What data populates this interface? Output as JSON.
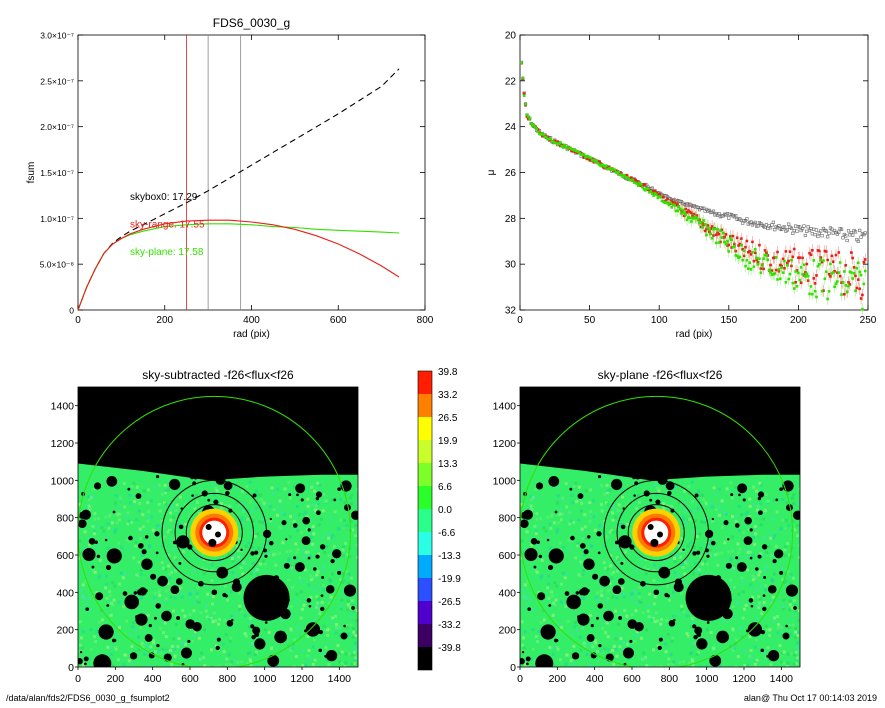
{
  "footer": {
    "path": "/data/alan/fds2/FDS6_0030_g_fsumplot2",
    "stamp": "alan@  Thu Oct 17 00:14:03 2019"
  },
  "colors": {
    "black": "#000000",
    "red": "#e8201a",
    "green": "#33e000",
    "gray": "#888888",
    "sky_map_mid": "#33ee66"
  },
  "chart_data": [
    {
      "id": "fsum",
      "type": "line",
      "title": "FDS6_0030_g",
      "xlabel": "rad (pix)",
      "ylabel": "fsum",
      "xlim": [
        0,
        800
      ],
      "ylim": [
        0,
        3e-07
      ],
      "xticks": [
        0,
        200,
        400,
        600,
        800
      ],
      "xtick_labels": [
        "0",
        "200",
        "400",
        "600",
        "800"
      ],
      "yticks": [
        0,
        5e-08,
        1e-07,
        1.5e-07,
        2e-07,
        2.5e-07,
        3e-07
      ],
      "ytick_labels": [
        "0",
        "5.0×10⁻⁸",
        "1.0×10⁻⁷",
        "1.5×10⁻⁷",
        "2.0×10⁻⁷",
        "2.5×10⁻⁷",
        "3.0×10⁻⁷"
      ],
      "vlines": [
        {
          "x": 250,
          "color": "red"
        },
        {
          "x": 300,
          "color": "gray"
        },
        {
          "x": 375,
          "color": "gray"
        }
      ],
      "annotations": [
        {
          "text": "skybox0: 17.29",
          "x": 120,
          "y": 1.2e-07,
          "color": "black"
        },
        {
          "text": "sky-range: 17.55",
          "x": 120,
          "y": 9e-08,
          "color": "red"
        },
        {
          "text": "sky-plane: 17.58",
          "x": 120,
          "y": 6e-08,
          "color": "green"
        }
      ],
      "series": [
        {
          "color": "black",
          "dash": true,
          "x": [
            0,
            20,
            40,
            60,
            80,
            100,
            120,
            150,
            200,
            250,
            300,
            350,
            400,
            450,
            500,
            550,
            600,
            650,
            700,
            740
          ],
          "y": [
            0,
            2.5e-08,
            4.5e-08,
            6.2e-08,
            7.3e-08,
            8e-08,
            8.6e-08,
            9.3e-08,
            1.05e-07,
            1.17e-07,
            1.3e-07,
            1.44e-07,
            1.58e-07,
            1.72e-07,
            1.86e-07,
            2e-07,
            2.14e-07,
            2.29e-07,
            2.44e-07,
            2.63e-07
          ]
        },
        {
          "color": "green",
          "dash": false,
          "x": [
            0,
            20,
            40,
            60,
            80,
            100,
            120,
            150,
            200,
            250,
            300,
            350,
            400,
            450,
            500,
            550,
            600,
            650,
            700,
            740
          ],
          "y": [
            0,
            2.5e-08,
            4.5e-08,
            6.2e-08,
            7.2e-08,
            7.8e-08,
            8.2e-08,
            8.6e-08,
            9.1e-08,
            9.3e-08,
            9.4e-08,
            9.4e-08,
            9.3e-08,
            9.1e-08,
            9e-08,
            8.8e-08,
            8.7e-08,
            8.6e-08,
            8.5e-08,
            8.4e-08
          ]
        },
        {
          "color": "red",
          "dash": false,
          "x": [
            0,
            20,
            40,
            60,
            80,
            100,
            120,
            150,
            200,
            250,
            300,
            350,
            400,
            450,
            500,
            550,
            600,
            650,
            700,
            740
          ],
          "y": [
            0,
            2.5e-08,
            4.5e-08,
            6.2e-08,
            7.2e-08,
            7.8e-08,
            8.3e-08,
            8.8e-08,
            9.4e-08,
            9.7e-08,
            9.8e-08,
            9.8e-08,
            9.6e-08,
            9.3e-08,
            8.8e-08,
            8.1e-08,
            7.2e-08,
            6.1e-08,
            4.8e-08,
            3.6e-08
          ]
        }
      ]
    },
    {
      "id": "mu",
      "type": "scatter",
      "title": "",
      "xlabel": "rad (pix)",
      "ylabel": "μ",
      "xlim": [
        0,
        250
      ],
      "ylim": [
        32,
        20
      ],
      "xticks": [
        0,
        50,
        100,
        150,
        200,
        250
      ],
      "xtick_labels": [
        "0",
        "50",
        "100",
        "150",
        "200",
        "250"
      ],
      "yticks": [
        20,
        22,
        24,
        26,
        28,
        30,
        32
      ],
      "ytick_labels": [
        "20",
        "22",
        "24",
        "26",
        "28",
        "30",
        "32"
      ],
      "series": [
        {
          "color": "gray",
          "x": [
            1,
            3,
            5,
            10,
            15,
            20,
            30,
            40,
            50,
            60,
            70,
            80,
            90,
            100,
            110,
            120,
            130,
            140,
            150,
            160,
            170,
            180,
            190,
            200,
            210,
            220,
            230,
            240,
            248
          ],
          "y": [
            21.2,
            22.6,
            23.5,
            24.0,
            24.3,
            24.5,
            24.8,
            25.1,
            25.4,
            25.7,
            26.0,
            26.3,
            26.6,
            26.9,
            27.2,
            27.4,
            27.6,
            27.8,
            27.9,
            28.1,
            28.2,
            28.3,
            28.4,
            28.5,
            28.6,
            28.6,
            28.7,
            28.8,
            28.8
          ]
        },
        {
          "color": "red",
          "x": [
            1,
            3,
            5,
            10,
            15,
            20,
            30,
            40,
            50,
            60,
            70,
            80,
            90,
            100,
            110,
            120,
            130,
            140,
            150,
            160,
            170,
            180,
            190,
            200,
            210,
            220,
            230,
            240,
            248
          ],
          "y": [
            21.2,
            22.6,
            23.5,
            24.0,
            24.3,
            24.5,
            24.8,
            25.1,
            25.4,
            25.7,
            26.0,
            26.3,
            26.6,
            27.0,
            27.4,
            27.8,
            28.2,
            28.6,
            29.0,
            29.4,
            29.6,
            29.8,
            30.0,
            30.1,
            30.2,
            30.3,
            30.4,
            30.5,
            30.5
          ]
        },
        {
          "color": "green",
          "x": [
            1,
            3,
            5,
            10,
            15,
            20,
            30,
            40,
            50,
            60,
            70,
            80,
            90,
            100,
            110,
            120,
            130,
            140,
            150,
            160,
            170,
            180,
            190,
            200,
            210,
            220,
            230,
            240,
            248
          ],
          "y": [
            21.2,
            22.6,
            23.5,
            24.0,
            24.3,
            24.5,
            24.8,
            25.1,
            25.4,
            25.7,
            26.0,
            26.3,
            26.7,
            27.1,
            27.5,
            27.9,
            28.3,
            28.7,
            29.1,
            29.6,
            29.9,
            30.1,
            30.3,
            30.5,
            30.6,
            30.7,
            30.8,
            30.9,
            31.0
          ]
        }
      ]
    },
    {
      "id": "map-sky-subtracted",
      "type": "heatmap",
      "title": "sky-subtracted -f26<flux<f26",
      "xlim": [
        0,
        1500
      ],
      "ylim": [
        0,
        1500
      ],
      "xticks": [
        0,
        200,
        400,
        600,
        800,
        1000,
        1200,
        1400
      ],
      "xtick_labels": [
        "0",
        "200",
        "400",
        "600",
        "800",
        "1000",
        "1200",
        "1400"
      ],
      "yticks": [
        0,
        200,
        400,
        600,
        800,
        1000,
        1200,
        1400
      ],
      "ytick_labels": [
        "0",
        "200",
        "400",
        "600",
        "800",
        "1000",
        "1200",
        "1400"
      ],
      "galaxy_center": [
        730,
        720
      ],
      "circles": [
        {
          "r": 280,
          "color": "black"
        },
        {
          "r": 210,
          "color": "black"
        },
        {
          "r": 150,
          "color": "black"
        },
        {
          "r": 730,
          "color": "green"
        }
      ]
    },
    {
      "id": "colorbar",
      "type": "heatmap",
      "title": "",
      "labels": [
        "39.8",
        "33.2",
        "26.5",
        "19.9",
        "13.3",
        "6.6",
        "0.0",
        "-6.6",
        "-13.3",
        "-19.9",
        "-26.5",
        "-33.2",
        "-39.8"
      ],
      "colors": [
        "#ff1e00",
        "#ff8000",
        "#ffff00",
        "#c8ff2a",
        "#7dff2a",
        "#2aff2a",
        "#2aff8c",
        "#2affe6",
        "#00aaff",
        "#2a50ff",
        "#5000cc",
        "#3c0064",
        "#000000"
      ]
    },
    {
      "id": "map-sky-plane",
      "type": "heatmap",
      "title": "sky-plane -f26<flux<f26",
      "xlim": [
        0,
        1500
      ],
      "ylim": [
        0,
        1500
      ],
      "xticks": [
        0,
        200,
        400,
        600,
        800,
        1000,
        1200,
        1400
      ],
      "xtick_labels": [
        "0",
        "200",
        "400",
        "600",
        "800",
        "1000",
        "1200",
        "1400"
      ],
      "yticks": [
        0,
        200,
        400,
        600,
        800,
        1000,
        1200,
        1400
      ],
      "ytick_labels": [
        "0",
        "200",
        "400",
        "600",
        "800",
        "1000",
        "1200",
        "1400"
      ],
      "galaxy_center": [
        730,
        720
      ],
      "circles": [
        {
          "r": 280,
          "color": "black"
        },
        {
          "r": 210,
          "color": "black"
        },
        {
          "r": 150,
          "color": "black"
        },
        {
          "r": 730,
          "color": "green"
        }
      ]
    }
  ]
}
